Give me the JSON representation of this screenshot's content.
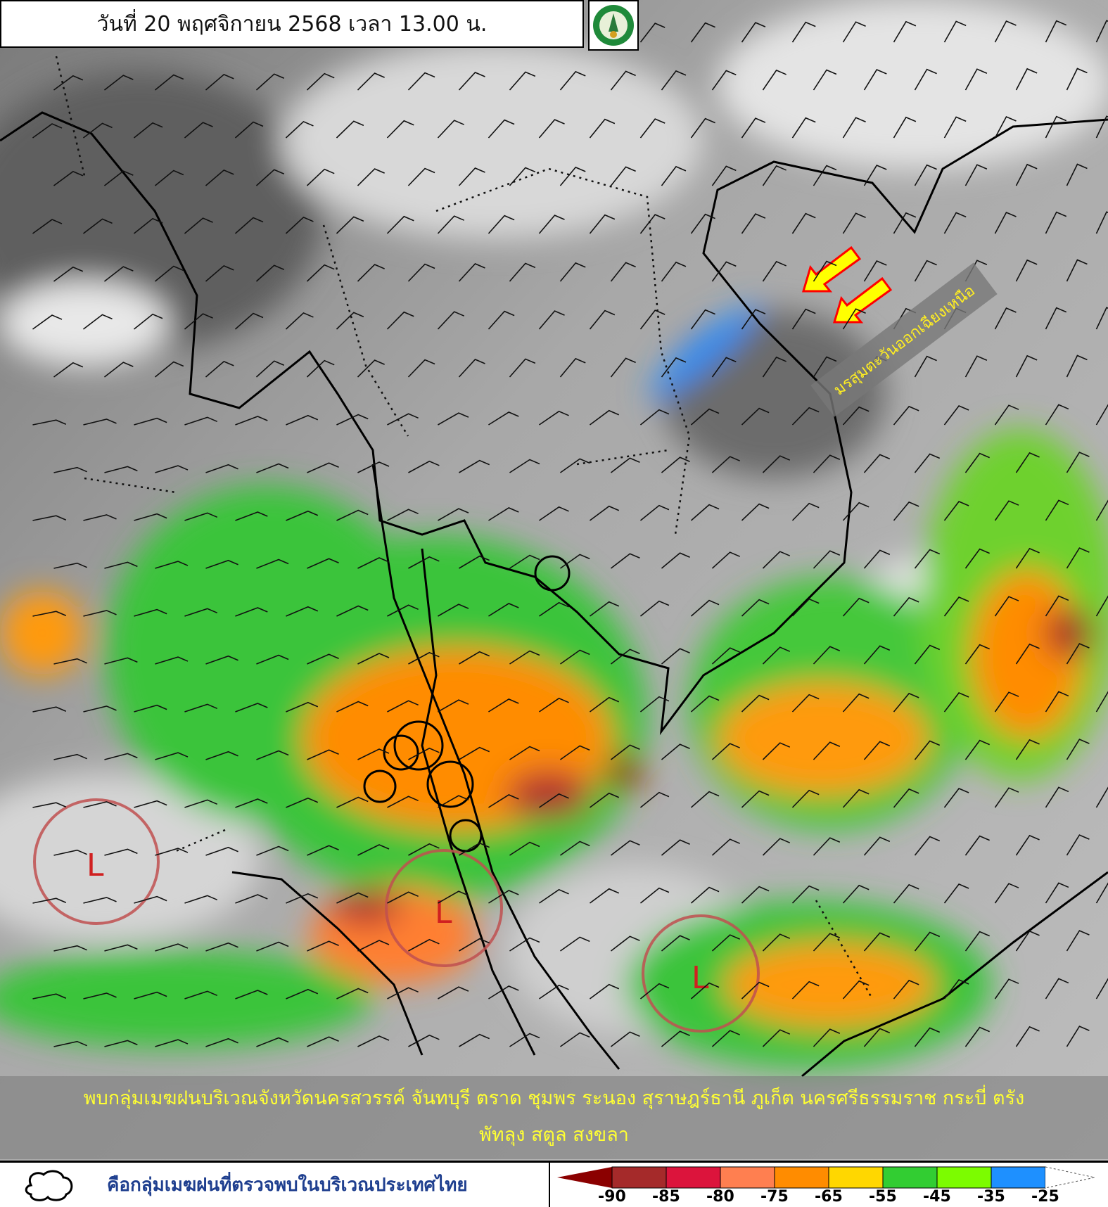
{
  "header": {
    "title": "วันที่ 20 พฤศจิกายน 2568 เวลา 13.00 น."
  },
  "logo": {
    "text": "กรมอุตุนิยมวิทยา"
  },
  "annotation": {
    "monsoon_label": "มรสุมตะวันออกเฉียงเหนือ",
    "arrow_color": "#ffff00",
    "arrow_outline": "#ff0000"
  },
  "low_pressure": {
    "symbol": "L",
    "color": "#c0393b",
    "count": 3
  },
  "caption": {
    "line1": "พบกลุ่มเมฆฝนบริเวณจังหวัดนครสวรรค์ จันทบุรี ตราด ชุมพร ระนอง สุราษฎร์ธานี ภูเก็ต นครศรีธรรมราช กระบี่ ตรัง",
    "line2": "พัทลุง สตูล สงขลา"
  },
  "legend": {
    "cloud_label": "คือกลุ่มเมฆฝนที่ตรวจพบในบริเวณประเทศไทย",
    "scale_ticks": [
      "-90",
      "-85",
      "-80",
      "-75",
      "-65",
      "-55",
      "-45",
      "-35",
      "-25"
    ],
    "scale_colors": [
      "#8b0000",
      "#a52a2a",
      "#dc143c",
      "#ff7f50",
      "#ff8c00",
      "#ffd700",
      "#32cd32",
      "#7cfc00",
      "#1e90ff",
      "#ffffff"
    ]
  }
}
